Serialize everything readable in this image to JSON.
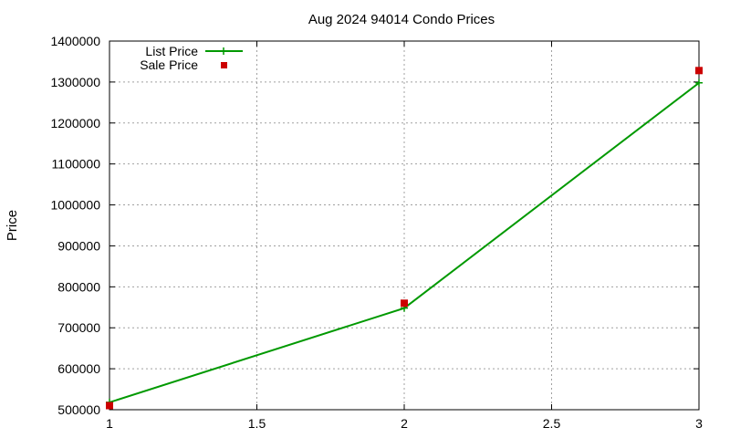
{
  "chart_data": {
    "type": "line",
    "title": "Aug 2024 94014 Condo Prices",
    "xlabel": "",
    "ylabel": "Price",
    "xlim": [
      1,
      3
    ],
    "ylim": [
      500000,
      1400000
    ],
    "xticks": [
      "1",
      "1.5",
      "2",
      "2.5",
      "3"
    ],
    "xtick_values": [
      1,
      1.5,
      2,
      2.5,
      3
    ],
    "yticks": [
      "500000",
      "600000",
      "700000",
      "800000",
      "900000",
      "1000000",
      "1100000",
      "1200000",
      "1300000",
      "1400000"
    ],
    "ytick_values": [
      500000,
      600000,
      700000,
      800000,
      900000,
      1000000,
      1100000,
      1200000,
      1300000,
      1400000
    ],
    "grid": true,
    "legend_position": "top-left",
    "series": [
      {
        "name": "List Price",
        "kind": "line-with-plus-markers",
        "color": "#009900",
        "x": [
          1,
          2,
          3
        ],
        "y": [
          518000,
          748000,
          1298000
        ]
      },
      {
        "name": "Sale Price",
        "kind": "square-markers",
        "color": "#cc0000",
        "x": [
          1,
          2,
          3
        ],
        "y": [
          510000,
          760000,
          1328000
        ]
      }
    ]
  }
}
